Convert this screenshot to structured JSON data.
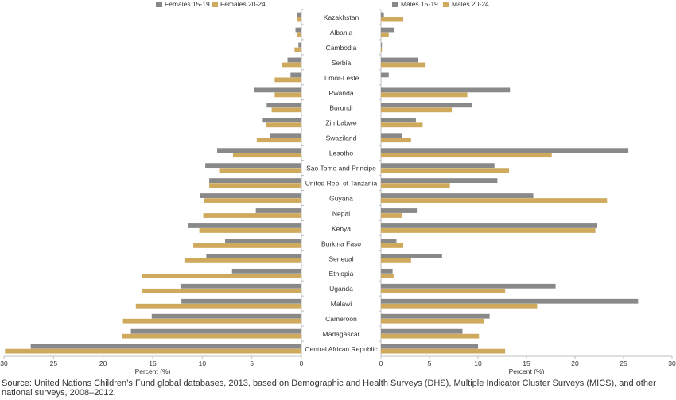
{
  "chart_data": {
    "type": "bar",
    "orientation": "horizontal",
    "layout": "butterfly",
    "categories": [
      "Kazakhstan",
      "Albania",
      "Cambodia",
      "Serbia",
      "Timor-Leste",
      "Rwanda",
      "Burundi",
      "Zimbabwe",
      "Swaziland",
      "Lesotho",
      "Sao Tome and Principe",
      "United Rep. of Tanzania",
      "Guyana",
      "Nepal",
      "Kenya",
      "Burkina Faso",
      "Senegal",
      "Ethiopia",
      "Uganda",
      "Malawi",
      "Cameroon",
      "Madagascar",
      "Central African Republic"
    ],
    "panels": [
      {
        "side": "left",
        "xlabel": "Percent (%)",
        "xlim": [
          30,
          0
        ],
        "ticks": [
          "30",
          "25",
          "20",
          "15",
          "10",
          "5",
          "0"
        ],
        "series": [
          {
            "name": "Females 15-19",
            "color": "#898989",
            "values": [
              0.4,
              0.6,
              0.3,
              1.4,
              1.1,
              4.8,
              3.5,
              3.9,
              3.2,
              8.5,
              9.7,
              9.3,
              10.2,
              4.6,
              11.4,
              7.7,
              9.6,
              7.0,
              12.2,
              12.1,
              15.1,
              17.2,
              27.3
            ]
          },
          {
            "name": "Females 20-24",
            "color": "#cfaa5d",
            "values": [
              0.4,
              0.4,
              0.7,
              2.0,
              2.7,
              2.7,
              3.0,
              3.6,
              4.5,
              6.9,
              8.3,
              9.3,
              9.8,
              9.9,
              10.3,
              10.9,
              11.8,
              16.1,
              16.1,
              16.7,
              18.0,
              18.1,
              29.9
            ]
          }
        ]
      },
      {
        "side": "right",
        "xlabel": "Percent (%)",
        "xlim": [
          0,
          30
        ],
        "ticks": [
          "0",
          "5",
          "10",
          "15",
          "20",
          "25",
          "30"
        ],
        "series": [
          {
            "name": "Males 15-19",
            "color": "#898989",
            "values": [
              0.3,
              1.4,
              0.1,
              3.8,
              0.8,
              13.3,
              9.4,
              3.6,
              2.2,
              25.5,
              11.7,
              12.0,
              15.7,
              3.7,
              22.3,
              1.6,
              6.3,
              1.2,
              18.0,
              26.5,
              11.2,
              8.4,
              10.0
            ]
          },
          {
            "name": "Males 20-24",
            "color": "#cfaa5d",
            "values": [
              2.3,
              0.8,
              0.1,
              4.6,
              0.0,
              8.9,
              7.3,
              4.3,
              3.1,
              17.6,
              13.2,
              7.1,
              23.3,
              2.2,
              22.1,
              2.3,
              3.1,
              1.3,
              12.8,
              16.1,
              10.6,
              10.1,
              12.8
            ]
          }
        ]
      }
    ]
  },
  "source_note": "Source: United Nations Children’s Fund global databases, 2013, based on Demographic and Health Surveys (DHS), Multiple Indicator Cluster Surveys (MICS), and other national surveys, 2008–2012."
}
